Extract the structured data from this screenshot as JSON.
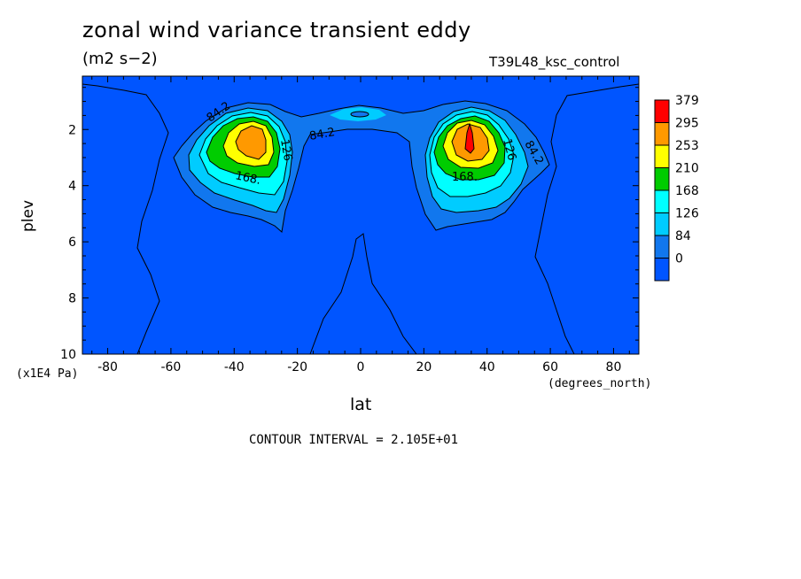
{
  "chart_data": {
    "type": "heatmap",
    "subtype": "filled-contour",
    "title": "zonal wind variance transient eddy",
    "units": "(m2 s−2)",
    "case_label": "T39L48_ksc_control",
    "xlabel": "lat",
    "xunits": "(degrees_north)",
    "ylabel": "plev",
    "yunits": "(x1E4 Pa)",
    "xlim": [
      -88,
      88
    ],
    "ylim": [
      10,
      0.1
    ],
    "xticks": [
      "-80",
      "-60",
      "-40",
      "-20",
      "0",
      "20",
      "40",
      "60",
      "80"
    ],
    "yticks": [
      "2",
      "4",
      "6",
      "8",
      "10"
    ],
    "contour_interval_text": "CONTOUR INTERVAL = 2.105E+01",
    "colorbar": {
      "labels": [
        "379",
        "295",
        "253",
        "210",
        "168",
        "126",
        "84",
        "0"
      ],
      "colors": [
        "#ff0000",
        "#ff9900",
        "#ffff00",
        "#00cc00",
        "#00ffff",
        "#00ccff",
        "#1177ee",
        "#0055ff"
      ]
    },
    "contour_labels": [
      "84.2",
      "84.2",
      "84.2",
      "126",
      "126",
      "168.",
      "168."
    ],
    "maxima": [
      {
        "lat": -33,
        "plev": 2.4,
        "value": 295
      },
      {
        "lat": 34,
        "plev": 2.4,
        "value": 379
      }
    ]
  }
}
